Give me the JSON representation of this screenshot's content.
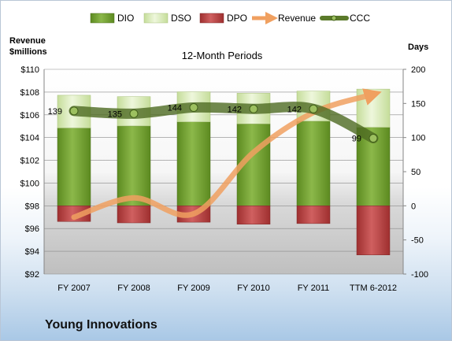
{
  "company": "Young Innovations",
  "chart_data": {
    "type": "bar",
    "title": "12-Month Periods",
    "categories": [
      "FY 2007",
      "FY 2008",
      "FY 2009",
      "FY 2010",
      "FY 2011",
      "TTM 6-2012"
    ],
    "left_axis": {
      "label_line1": "Revenue",
      "label_line2": "$millions",
      "range": [
        92,
        110
      ],
      "ticks": [
        "$92",
        "$94",
        "$96",
        "$98",
        "$100",
        "$102",
        "$104",
        "$106",
        "$108",
        "$110"
      ]
    },
    "right_axis": {
      "label": "Days",
      "range": [
        -100,
        200
      ],
      "ticks": [
        "-100",
        "-50",
        "0",
        "50",
        "100",
        "150",
        "200"
      ]
    },
    "legend_position": "top",
    "series": [
      {
        "name": "DIO",
        "kind": "stacked-bar",
        "axis": "right",
        "color": "#77a031",
        "values": [
          114,
          117,
          123,
          120,
          124,
          115
        ]
      },
      {
        "name": "DSO",
        "kind": "stacked-bar",
        "axis": "right",
        "color": "#d6e8b4",
        "values": [
          48,
          43,
          44,
          45,
          44,
          56
        ]
      },
      {
        "name": "DPO",
        "kind": "stacked-bar-negative",
        "axis": "right",
        "color": "#b84646",
        "values": [
          -23,
          -25,
          -24,
          -27,
          -26,
          -72
        ]
      },
      {
        "name": "Revenue",
        "kind": "line",
        "axis": "left",
        "color": "#f0a060",
        "values": [
          97.0,
          98.7,
          97.3,
          102.7,
          106.2,
          107.8
        ]
      },
      {
        "name": "CCC",
        "kind": "line",
        "axis": "right",
        "color": "#5b7a2a",
        "values": [
          139,
          135,
          144,
          142,
          142,
          99
        ]
      }
    ],
    "ccc_labels": [
      "139",
      "135",
      "144",
      "142",
      "142",
      "99"
    ]
  }
}
